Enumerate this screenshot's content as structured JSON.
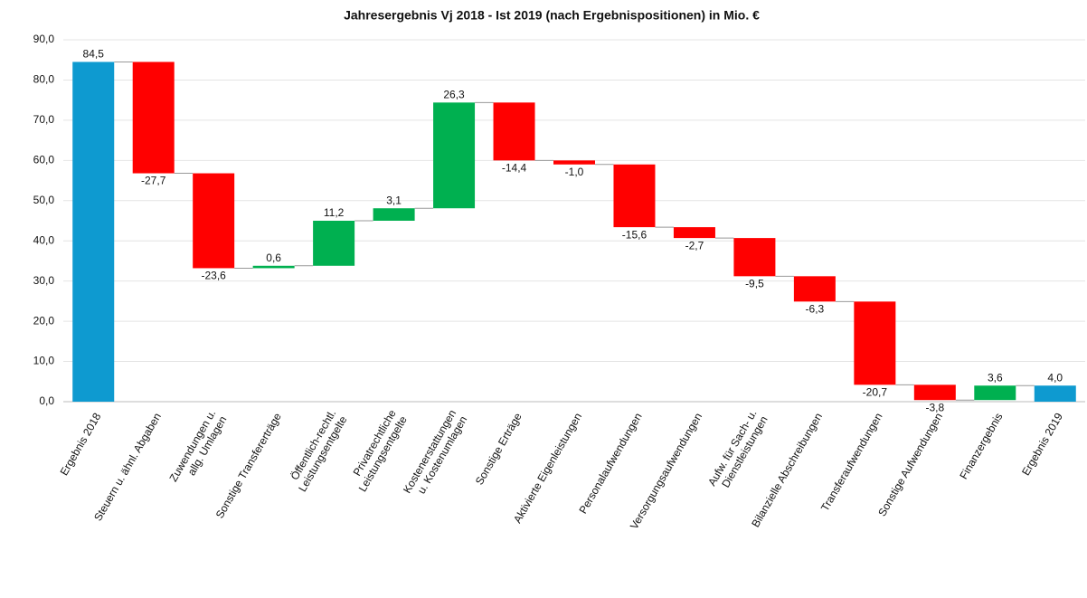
{
  "chart_data": {
    "type": "waterfall",
    "title": "Jahresergebnis  Vj 2018  - Ist 2019 (nach Ergebnispositionen)  in Mio. €",
    "categories": [
      "Ergebnis 2018",
      "Steuern u. ähnl. Abgaben",
      "Zuwendungen u.\nallg. Umlagen",
      "Sonstige Transfererträge",
      "Öffentlich-rechtl.\nLeistungsentgelte",
      "Privatrechtliche\nLeistungsentgelte",
      "Kostenerstattungen\nu. Kostenumlagen",
      "Sonstige Erträge",
      "Aktivierte Eigenleistungen",
      "Personalaufwendungen",
      "Versorgungsaufwendungen",
      "Aufw. für Sach- u.\nDienstleistungen",
      "Bilanzielle Abschreibungen",
      "Transferaufwendungen",
      "Sonstige Aufwendungen",
      "Finanzergebnis",
      "Ergebnis 2019"
    ],
    "values": [
      84.5,
      -27.7,
      -23.6,
      0.6,
      11.2,
      3.1,
      26.3,
      -14.4,
      -1.0,
      -15.6,
      -2.7,
      -9.5,
      -6.3,
      -20.7,
      -3.8,
      3.6,
      4.0
    ],
    "value_labels": [
      "84,5",
      "-27,7",
      "-23,6",
      "0,6",
      "11,2",
      "3,1",
      "26,3",
      "-14,4",
      "-1,0",
      "-15,6",
      "-2,7",
      "-9,5",
      "-6,3",
      "-20,7",
      "-3,8",
      "3,6",
      "4,0"
    ],
    "is_total": [
      true,
      false,
      false,
      false,
      false,
      false,
      false,
      false,
      false,
      false,
      false,
      false,
      false,
      false,
      false,
      false,
      true
    ],
    "colors": {
      "total": "#0e9ad0",
      "increase": "#00b050",
      "decrease": "#ff0000"
    },
    "ylim": [
      0,
      90
    ],
    "yticks": [
      {
        "value": 0,
        "label": "0,0"
      },
      {
        "value": 10,
        "label": "10,0"
      },
      {
        "value": 20,
        "label": "20,0"
      },
      {
        "value": 30,
        "label": "30,0"
      },
      {
        "value": 40,
        "label": "40,0"
      },
      {
        "value": 50,
        "label": "50,0"
      },
      {
        "value": 60,
        "label": "60,0"
      },
      {
        "value": 70,
        "label": "70,0"
      },
      {
        "value": 80,
        "label": "80,0"
      },
      {
        "value": 90,
        "label": "90,0"
      }
    ],
    "grid": true
  }
}
